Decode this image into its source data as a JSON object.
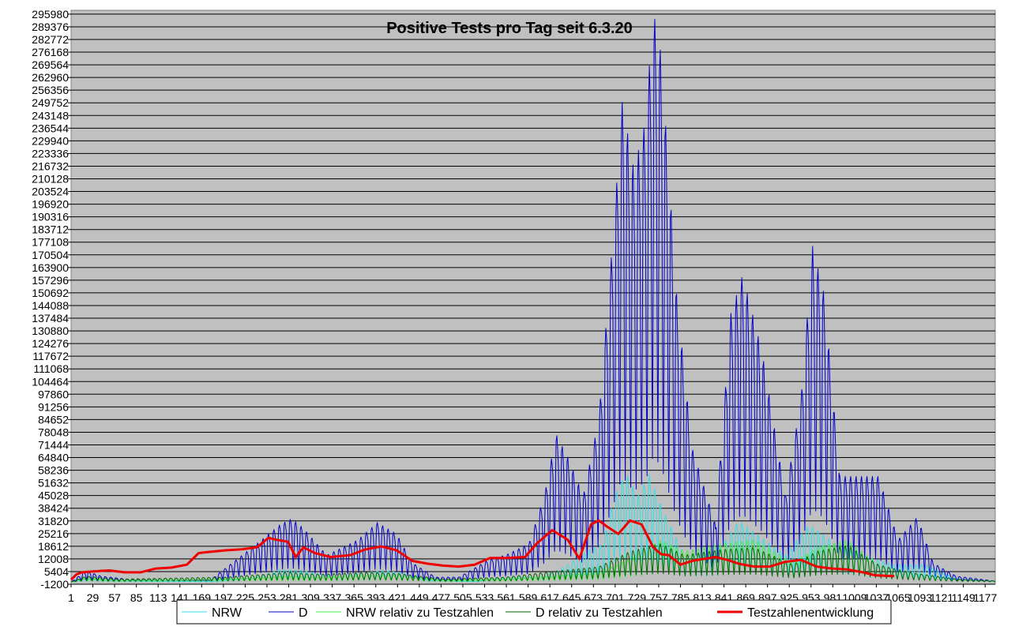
{
  "chart_data": {
    "type": "line",
    "title": "Positive Tests pro Tag seit 6.3.20",
    "xlabel": "",
    "ylabel": "",
    "grid": true,
    "background": "#c0c0c0",
    "ylim": [
      -1200,
      298000
    ],
    "xlim": [
      1,
      1190
    ],
    "y_ticks": [
      -1200,
      5404,
      12008,
      18612,
      25216,
      31820,
      38424,
      45028,
      51632,
      58236,
      64840,
      71444,
      78048,
      84652,
      91256,
      97860,
      104464,
      111068,
      117672,
      124276,
      130880,
      137484,
      144088,
      150692,
      157296,
      163900,
      170504,
      177108,
      183712,
      190316,
      196920,
      203524,
      210128,
      216732,
      223336,
      229940,
      236544,
      243148,
      249752,
      256356,
      262960,
      269564,
      276168,
      282772,
      289376,
      295980
    ],
    "x_ticks": [
      1,
      29,
      57,
      85,
      113,
      141,
      169,
      197,
      225,
      253,
      281,
      309,
      337,
      365,
      393,
      421,
      449,
      477,
      505,
      533,
      561,
      589,
      617,
      645,
      673,
      701,
      729,
      757,
      785,
      813,
      841,
      869,
      897,
      925,
      953,
      981,
      1009,
      1037,
      1065,
      1093,
      1121,
      1149,
      1177
    ],
    "x_tick_labels": [
      "1",
      "29",
      "57",
      "85",
      "113",
      "141",
      "169",
      "197",
      "225",
      "253",
      "281",
      "309",
      "337",
      "365",
      "393",
      "421",
      "449",
      "477",
      "505",
      "533",
      "561",
      "589",
      "617",
      "645",
      "673",
      "701",
      "729",
      "757",
      "785",
      "813",
      "841",
      "869",
      "897",
      "925",
      "953",
      "981",
      "1009",
      "1037",
      "1065",
      "1093",
      "1121",
      "1149",
      "1177"
    ],
    "legend_position": "bottom",
    "series": [
      {
        "name": "NRW",
        "color": "#33e0e8",
        "stroke_width": 1,
        "weekly_oscillation": true,
        "envelope_x": [
          1,
          20,
          60,
          180,
          240,
          270,
          300,
          340,
          400,
          425,
          460,
          520,
          560,
          610,
          640,
          660,
          685,
          700,
          715,
          730,
          745,
          760,
          790,
          830,
          860,
          880,
          920,
          950,
          965,
          990,
          1020,
          1060,
          1100,
          1140,
          1190
        ],
        "envelope_y": [
          0,
          1500,
          600,
          300,
          2500,
          6500,
          6000,
          2500,
          6000,
          5000,
          1000,
          300,
          2500,
          2500,
          9000,
          15000,
          20000,
          45000,
          57000,
          45000,
          56000,
          40000,
          14000,
          14000,
          32000,
          26000,
          14000,
          30000,
          26000,
          18000,
          14000,
          9000,
          9000,
          1500,
          500
        ]
      },
      {
        "name": "D",
        "color": "#0000cc",
        "stroke_width": 1,
        "weekly_oscillation": true,
        "envelope_x": [
          1,
          20,
          40,
          80,
          180,
          240,
          270,
          285,
          300,
          330,
          370,
          395,
          420,
          440,
          470,
          500,
          540,
          560,
          590,
          610,
          625,
          640,
          660,
          680,
          700,
          710,
          725,
          740,
          750,
          760,
          780,
          800,
          830,
          850,
          865,
          890,
          920,
          940,
          955,
          970,
          990,
          1010,
          1040,
          1065,
          1090,
          1110,
          1140,
          1190
        ],
        "envelope_y": [
          0,
          5800,
          3000,
          1200,
          1000,
          20000,
          30000,
          33000,
          28000,
          14000,
          22000,
          31000,
          25000,
          10000,
          2500,
          2500,
          12000,
          14000,
          20000,
          45000,
          77000,
          65000,
          45000,
          85000,
          190000,
          250000,
          215000,
          240000,
          298000,
          275000,
          150000,
          70000,
          30000,
          140000,
          160000,
          120000,
          45000,
          95000,
          175000,
          150000,
          55000,
          55000,
          55000,
          22000,
          34000,
          10000,
          3000,
          500
        ]
      },
      {
        "name": "NRW relativ zu Testzahlen",
        "color": "#44ee44",
        "stroke_width": 1,
        "weekly_oscillation": true,
        "envelope_x": [
          1,
          20,
          60,
          200,
          280,
          320,
          380,
          420,
          480,
          560,
          620,
          680,
          720,
          760,
          790,
          840,
          880,
          930,
          960,
          1000,
          1040,
          1080,
          1140,
          1190
        ],
        "envelope_y": [
          0,
          2000,
          800,
          1500,
          3000,
          2500,
          3500,
          3500,
          800,
          1500,
          3000,
          5000,
          12000,
          22000,
          16000,
          20000,
          22000,
          10000,
          18000,
          22000,
          9000,
          5000,
          1500,
          500
        ]
      },
      {
        "name": "D relativ zu Testzahlen",
        "color": "#006600",
        "stroke_width": 1,
        "weekly_oscillation": true,
        "envelope_x": [
          1,
          20,
          60,
          200,
          280,
          320,
          380,
          420,
          480,
          560,
          620,
          680,
          720,
          760,
          790,
          840,
          880,
          930,
          960,
          1000,
          1040,
          1080,
          1140,
          1190
        ],
        "envelope_y": [
          0,
          3000,
          1500,
          2500,
          5000,
          4000,
          5000,
          4500,
          1500,
          2500,
          5500,
          8000,
          16000,
          20000,
          14000,
          17000,
          18000,
          9000,
          16000,
          19000,
          9000,
          5000,
          1500,
          500
        ]
      },
      {
        "name": "Testzahlenentwicklung",
        "color": "#ee0000",
        "stroke_width": 3,
        "weekly_oscillation": false,
        "x": [
          1,
          8,
          15,
          30,
          50,
          70,
          90,
          110,
          130,
          150,
          165,
          175,
          200,
          220,
          240,
          255,
          265,
          280,
          290,
          300,
          315,
          335,
          360,
          380,
          400,
          420,
          440,
          460,
          480,
          500,
          520,
          540,
          560,
          585,
          600,
          620,
          640,
          655,
          670,
          680,
          690,
          705,
          720,
          735,
          750,
          760,
          770,
          785,
          800,
          815,
          830,
          845,
          860,
          880,
          900,
          920,
          940,
          960,
          980,
          1000,
          1020,
          1035,
          1060
        ],
        "y": [
          1200,
          4000,
          5000,
          5500,
          6000,
          5000,
          5000,
          7000,
          7500,
          9000,
          15000,
          15500,
          16500,
          17000,
          18000,
          23000,
          22000,
          21000,
          13000,
          18000,
          15000,
          13000,
          14000,
          17000,
          18500,
          16500,
          11000,
          9500,
          8500,
          8000,
          9000,
          12500,
          12500,
          13000,
          20000,
          27000,
          22000,
          12000,
          30000,
          32000,
          29000,
          25000,
          32000,
          30000,
          18000,
          14500,
          14000,
          9000,
          11000,
          12000,
          13000,
          11500,
          9500,
          8000,
          8000,
          10500,
          11500,
          8000,
          7000,
          6500,
          5000,
          3500,
          3000
        ]
      }
    ]
  }
}
